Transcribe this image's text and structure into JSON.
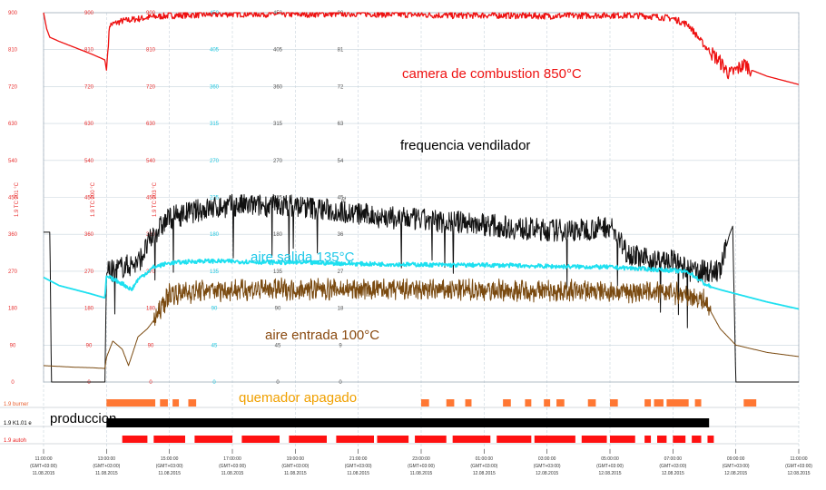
{
  "chart_data": {
    "type": "line",
    "title": "",
    "x_range": [
      "11:00:00 11.08.2015",
      "11:00:00 12.08.2015"
    ],
    "x_ticks": [
      {
        "time": "11:00:00",
        "tz": "(GMT+03:00)",
        "date": "11.08.2015"
      },
      {
        "time": "13:00:00",
        "tz": "(GMT+03:00)",
        "date": "11.08.2015"
      },
      {
        "time": "15:00:00",
        "tz": "(GMT+03:00)",
        "date": "11.08.2015"
      },
      {
        "time": "17:00:00",
        "tz": "(GMT+03:00)",
        "date": "11.08.2015"
      },
      {
        "time": "19:00:00",
        "tz": "(GMT+03:00)",
        "date": "11.08.2015"
      },
      {
        "time": "21:00:00",
        "tz": "(GMT+03:00)",
        "date": "11.08.2015"
      },
      {
        "time": "23:00:00",
        "tz": "(GMT+03:00)",
        "date": "11.08.2015"
      },
      {
        "time": "01:00:00",
        "tz": "(GMT+03:00)",
        "date": "12.08.2015"
      },
      {
        "time": "03:00:00",
        "tz": "(GMT+03:00)",
        "date": "12.08.2015"
      },
      {
        "time": "05:00:00",
        "tz": "(GMT+03:00)",
        "date": "12.08.2015"
      },
      {
        "time": "07:00:00",
        "tz": "(GMT+03:00)",
        "date": "12.08.2015"
      },
      {
        "time": "09:00:00",
        "tz": "(GMT+03:00)",
        "date": "12.08.2015"
      },
      {
        "time": "11:00:00",
        "tz": "(GMT+03:00)",
        "date": "12.08.2015"
      }
    ],
    "grid": true,
    "y_axes": [
      {
        "label": "1.9 TC 201 °C",
        "color": "#e83030",
        "min": 0,
        "max": 900,
        "ticks": [
          "0",
          "90",
          "180",
          "270",
          "360",
          "450",
          "540",
          "630",
          "720",
          "810",
          "900"
        ]
      },
      {
        "label": "1.9 TC 200 °C",
        "color": "#e83030",
        "min": 0,
        "max": 900,
        "ticks": [
          "0",
          "90",
          "180",
          "270",
          "360",
          "450",
          "540",
          "630",
          "720",
          "810",
          "900"
        ]
      },
      {
        "label": "1.9 TC 203 °C",
        "color": "#e83030",
        "min": 0,
        "max": 900,
        "ticks": [
          "0",
          "90",
          "180",
          "270",
          "360",
          "450",
          "540",
          "630",
          "720",
          "810",
          "900"
        ]
      },
      {
        "label": "",
        "color": "#22c8e0",
        "min": 0,
        "max": 450,
        "ticks": [
          "0",
          "45",
          "90",
          "135",
          "180",
          "225",
          "270",
          "315",
          "360",
          "405",
          "450"
        ]
      },
      {
        "label": "",
        "color": "#555555",
        "min": 0,
        "max": 450,
        "ticks": [
          "0",
          "45",
          "90",
          "135",
          "180",
          "225",
          "270",
          "315",
          "360",
          "405",
          "450"
        ]
      },
      {
        "label": "Hz",
        "color": "#555555",
        "min": 0,
        "max": 90,
        "ticks": [
          "0",
          "9",
          "18",
          "27",
          "36",
          "45",
          "54",
          "63",
          "72",
          "81",
          "90"
        ]
      }
    ],
    "series": [
      {
        "key": "combustion",
        "color": "#ee1111",
        "axis": "0-900",
        "x": [
          11.0,
          11.1,
          11.2,
          11.5,
          12.0,
          12.5,
          12.95,
          13.0,
          13.1,
          13.5,
          14.0,
          14.5,
          15.0,
          16.0,
          17.0,
          18.0,
          19.0,
          20.0,
          21.0,
          22.0,
          23.0,
          24.0,
          25.0,
          26.0,
          27.0,
          28.0,
          29.0,
          30.0,
          30.5,
          31.0,
          31.5,
          32.0,
          32.5,
          32.8,
          33.0,
          33.3,
          33.5,
          34.0,
          35.0
        ],
        "y": [
          900,
          860,
          840,
          830,
          815,
          800,
          785,
          760,
          870,
          880,
          885,
          890,
          893,
          895,
          897,
          897,
          896,
          897,
          898,
          896,
          895,
          893,
          894,
          893,
          892,
          893,
          894,
          893,
          890,
          886,
          870,
          820,
          780,
          750,
          760,
          775,
          760,
          745,
          725
        ]
      },
      {
        "key": "fan",
        "color": "#111111",
        "axis": "0-90 Hz",
        "x": [
          11.0,
          11.2,
          11.25,
          11.3,
          12.95,
          13.0,
          13.5,
          14.0,
          14.5,
          15.0,
          16.0,
          17.0,
          18.0,
          19.0,
          20.0,
          21.0,
          22.0,
          23.0,
          24.0,
          25.0,
          26.0,
          27.0,
          28.0,
          29.0,
          29.5,
          30.0,
          30.5,
          31.0,
          31.5,
          32.0,
          32.5,
          32.8,
          32.9,
          33.0
        ],
        "y": [
          36.5,
          36.5,
          0,
          0,
          0,
          26.5,
          28,
          29,
          36,
          40,
          42,
          43,
          43,
          43,
          42,
          41,
          40,
          39.5,
          39,
          38.5,
          37.5,
          37,
          37,
          38,
          32,
          30,
          29.5,
          29.5,
          27,
          27,
          27,
          36,
          38,
          0
        ]
      },
      {
        "key": "aire_salida",
        "color": "#1ee0f0",
        "axis": "0-900",
        "x": [
          11.0,
          11.5,
          12.0,
          12.5,
          12.95,
          13.0,
          13.5,
          13.8,
          14.0,
          14.5,
          15.0,
          16.0,
          17.0,
          18.0,
          19.0,
          20.0,
          21.0,
          22.0,
          23.0,
          24.0,
          25.0,
          26.0,
          27.0,
          28.0,
          29.0,
          30.0,
          30.5,
          31.0,
          31.5,
          32.0,
          32.2,
          32.5,
          33.0,
          34.0,
          35.0
        ],
        "y": [
          255,
          235,
          225,
          215,
          205,
          258,
          240,
          225,
          250,
          280,
          290,
          295,
          294,
          292,
          291,
          290,
          288,
          287,
          286,
          285,
          285,
          284,
          282,
          281,
          280,
          276,
          274,
          272,
          268,
          240,
          232,
          225,
          215,
          195,
          178
        ]
      },
      {
        "key": "aire_entrada",
        "color": "#7a4a10",
        "axis": "0-900",
        "x": [
          11.0,
          11.5,
          12.0,
          12.5,
          12.95,
          13.0,
          13.2,
          13.5,
          13.7,
          14.0,
          14.3,
          14.5,
          15.0,
          16.0,
          17.0,
          18.0,
          19.0,
          20.0,
          21.0,
          22.0,
          23.0,
          24.0,
          25.0,
          26.0,
          27.0,
          28.0,
          29.0,
          30.0,
          31.0,
          32.0,
          32.5,
          33.0,
          34.0,
          35.0
        ],
        "y": [
          40,
          38,
          36,
          35,
          33,
          60,
          100,
          80,
          40,
          110,
          130,
          150,
          215,
          222,
          225,
          226,
          226,
          226,
          225,
          225,
          224,
          224,
          224,
          223,
          222,
          222,
          220,
          220,
          218,
          200,
          130,
          90,
          72,
          62
        ]
      }
    ],
    "digital_rows": [
      {
        "label": "1.9 burner",
        "color": "#ff7733",
        "segments": [
          [
            13.0,
            14.55
          ],
          [
            14.7,
            14.95
          ],
          [
            15.1,
            15.3
          ],
          [
            15.6,
            15.85
          ],
          [
            23.0,
            23.25
          ],
          [
            23.8,
            24.05
          ],
          [
            24.4,
            24.6
          ],
          [
            25.6,
            25.85
          ],
          [
            26.3,
            26.5
          ],
          [
            26.9,
            27.1
          ],
          [
            27.3,
            27.55
          ],
          [
            28.3,
            28.55
          ],
          [
            29.0,
            29.25
          ],
          [
            30.1,
            30.3
          ],
          [
            30.4,
            30.7
          ],
          [
            30.8,
            31.5
          ],
          [
            31.7,
            31.9
          ],
          [
            33.25,
            33.65
          ]
        ]
      },
      {
        "label": "1.9 K1.01 e",
        "color": "#000000",
        "segments": [
          [
            13.0,
            32.15
          ]
        ]
      },
      {
        "label": "1.9 autoh",
        "color": "#ff1111",
        "segments": [
          [
            13.5,
            14.3
          ],
          [
            14.5,
            15.5
          ],
          [
            15.8,
            17.0
          ],
          [
            17.3,
            18.5
          ],
          [
            18.8,
            20.0
          ],
          [
            20.3,
            21.5
          ],
          [
            21.6,
            22.6
          ],
          [
            22.8,
            23.8
          ],
          [
            24.0,
            25.2
          ],
          [
            25.4,
            26.5
          ],
          [
            26.6,
            27.9
          ],
          [
            28.1,
            28.9
          ],
          [
            29.0,
            29.8
          ],
          [
            30.1,
            30.3
          ],
          [
            30.5,
            30.8
          ],
          [
            31.0,
            31.4
          ],
          [
            31.6,
            31.9
          ],
          [
            32.1,
            32.3
          ]
        ]
      }
    ],
    "annotations": [
      {
        "key": "combustion",
        "text": "camera de combustion 850°C",
        "color": "#ee1111"
      },
      {
        "key": "fan",
        "text": "frequencia vendilador",
        "color": "#000000"
      },
      {
        "key": "aire_salida",
        "text": "aire salida 135°C",
        "color": "#1ec8e8"
      },
      {
        "key": "aire_entrada",
        "text": "aire entrada 100°C",
        "color": "#8a4a10"
      },
      {
        "key": "quemador",
        "text": "quemador apagado",
        "color": "#f0a000"
      },
      {
        "key": "produccion",
        "text": "produccion",
        "color": "#000000"
      }
    ],
    "legend": "none"
  }
}
